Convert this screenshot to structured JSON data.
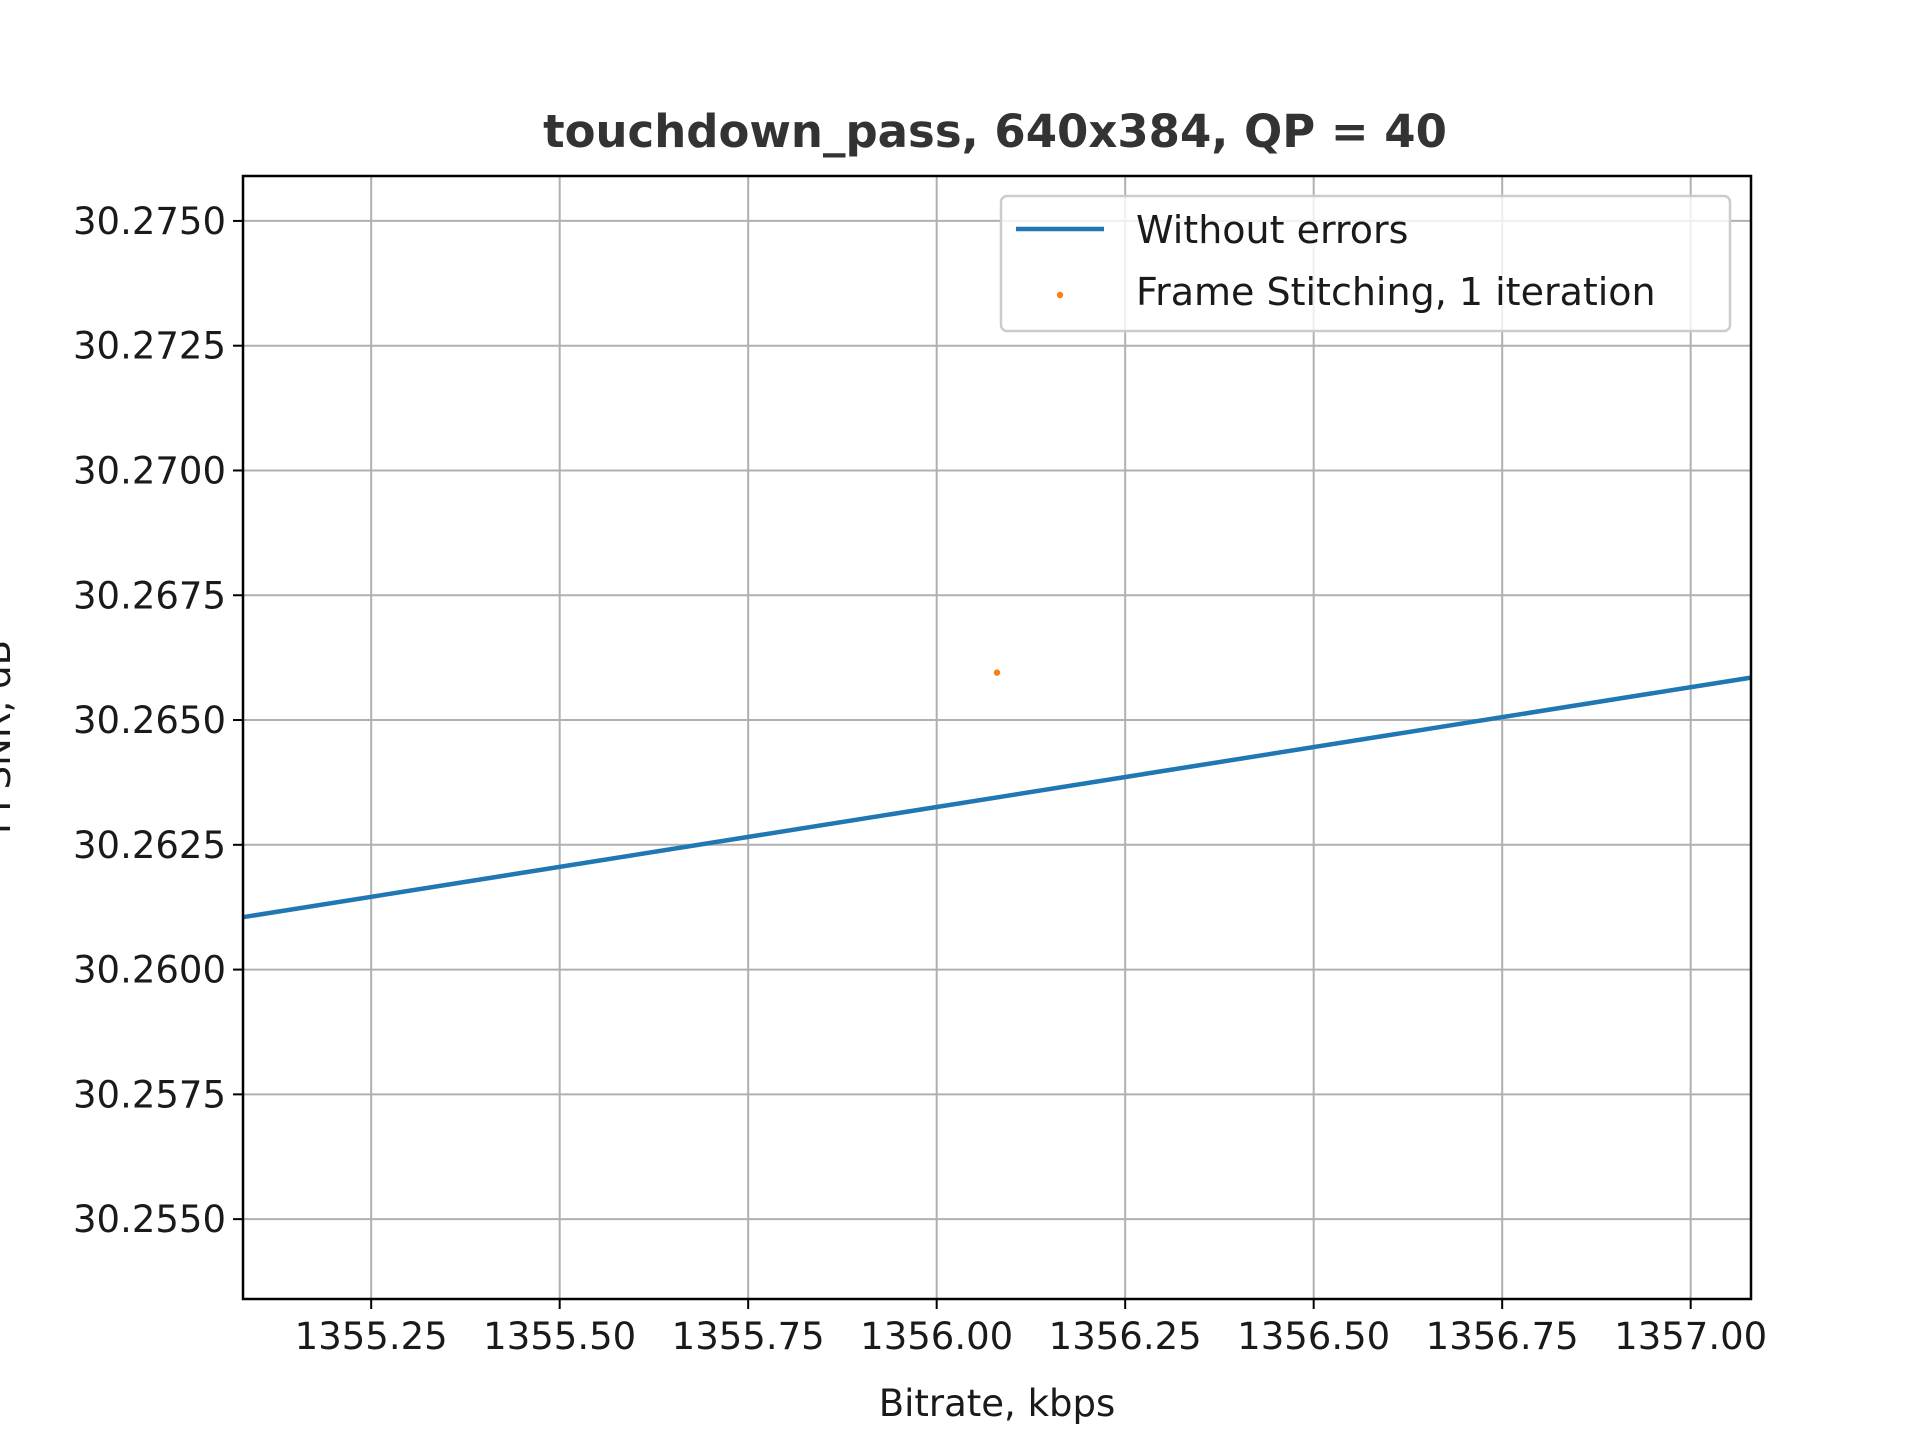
{
  "chart_data": {
    "type": "line",
    "title": "touchdown_pass, 640x384, QP = 40",
    "xlabel": "Bitrate, kbps",
    "ylabel": "PPSNR, dB",
    "xlim": [
      1355.08,
      1357.08
    ],
    "ylim": [
      30.2534,
      30.2759
    ],
    "xticks": [
      1355.25,
      1355.5,
      1355.75,
      1356.0,
      1356.25,
      1356.5,
      1356.75,
      1357.0
    ],
    "xtick_labels": [
      "1355.25",
      "1355.50",
      "1355.75",
      "1356.00",
      "1356.25",
      "1356.50",
      "1356.75",
      "1357.00"
    ],
    "yticks": [
      30.255,
      30.2575,
      30.26,
      30.2625,
      30.265,
      30.2675,
      30.27,
      30.2725,
      30.275
    ],
    "ytick_labels": [
      "30.2550",
      "30.2575",
      "30.2600",
      "30.2625",
      "30.2650",
      "30.2675",
      "30.2700",
      "30.2725",
      "30.2750"
    ],
    "grid": true,
    "legend_position": "top-right",
    "series": [
      {
        "name": "Without errors",
        "kind": "line",
        "color": "#1f77b4",
        "x": [
          1355.08,
          1357.08
        ],
        "y": [
          30.26105,
          30.26585
        ]
      },
      {
        "name": "Frame Stitching, 1 iteration",
        "kind": "scatter",
        "color": "#ff7f0e",
        "x": [
          1356.08
        ],
        "y": [
          30.26595
        ]
      }
    ]
  }
}
